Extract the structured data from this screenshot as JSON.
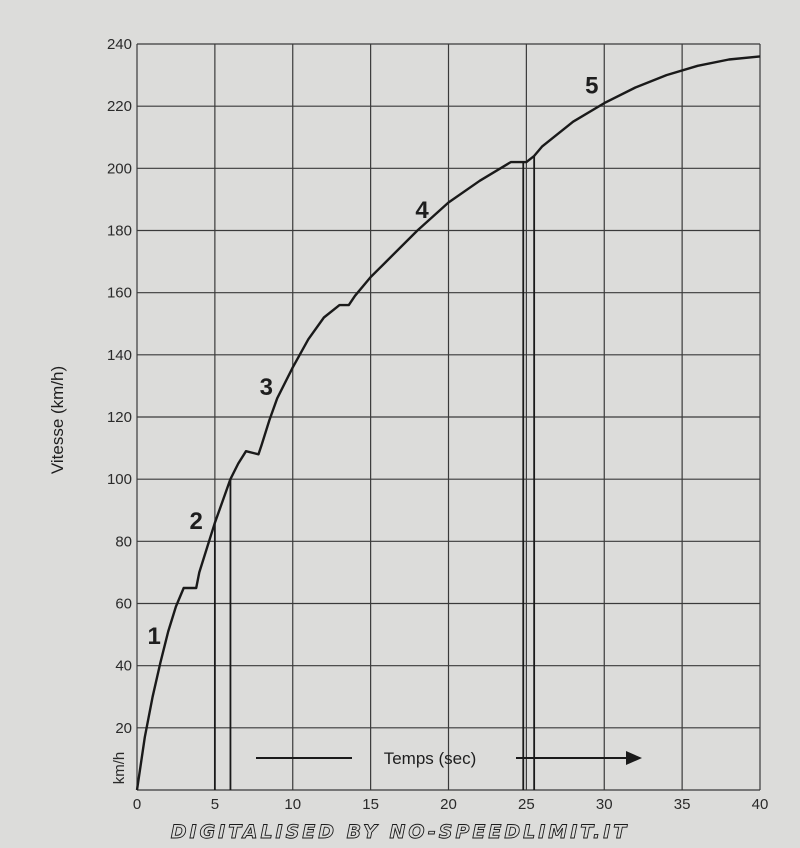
{
  "chart_data": {
    "type": "line",
    "xlabel": "Temps (sec)",
    "ylabel": "Vitesse (km/h)",
    "y_unit_label": "km/h",
    "xlim": [
      0,
      40
    ],
    "ylim": [
      0,
      240
    ],
    "x_ticks": [
      "0",
      "5",
      "10",
      "15",
      "20",
      "25",
      "30",
      "35",
      "40"
    ],
    "y_ticks": [
      "20",
      "40",
      "60",
      "80",
      "100",
      "120",
      "140",
      "160",
      "180",
      "200",
      "220",
      "240"
    ],
    "grid": true,
    "series": [
      {
        "x": [
          0,
          0.5,
          1,
          1.5,
          2,
          2.5,
          3,
          3.8,
          4,
          4.5,
          5,
          5.5,
          6,
          6.5,
          7,
          7.8,
          8,
          8.5,
          9,
          10,
          11,
          12,
          13,
          13.6,
          14,
          15,
          16,
          18,
          20,
          22,
          24,
          25,
          25.5,
          26,
          28,
          30,
          32,
          34,
          36,
          38,
          40
        ],
        "y": [
          0,
          17,
          30,
          41,
          51,
          59,
          65,
          65,
          70,
          78,
          86,
          93,
          100,
          105,
          109,
          108,
          111,
          119,
          126,
          136,
          145,
          152,
          156,
          156,
          159,
          165,
          170,
          180,
          189,
          196,
          202,
          202,
          204,
          207,
          215,
          221,
          226,
          230,
          233,
          235,
          236
        ]
      }
    ],
    "gear_labels": [
      {
        "text": "1",
        "x": 1.1,
        "y": 47
      },
      {
        "text": "2",
        "x": 3.8,
        "y": 84
      },
      {
        "text": "3",
        "x": 8.3,
        "y": 127
      },
      {
        "text": "4",
        "x": 18.3,
        "y": 184
      },
      {
        "text": "5",
        "x": 29.2,
        "y": 224
      }
    ],
    "shift_lines_x": [
      5.0,
      6.0,
      24.8,
      25.5
    ],
    "arrow_label": "Temps (sec)"
  },
  "watermark": "DIGITALISED BY NO-SPEEDLIMIT.IT"
}
